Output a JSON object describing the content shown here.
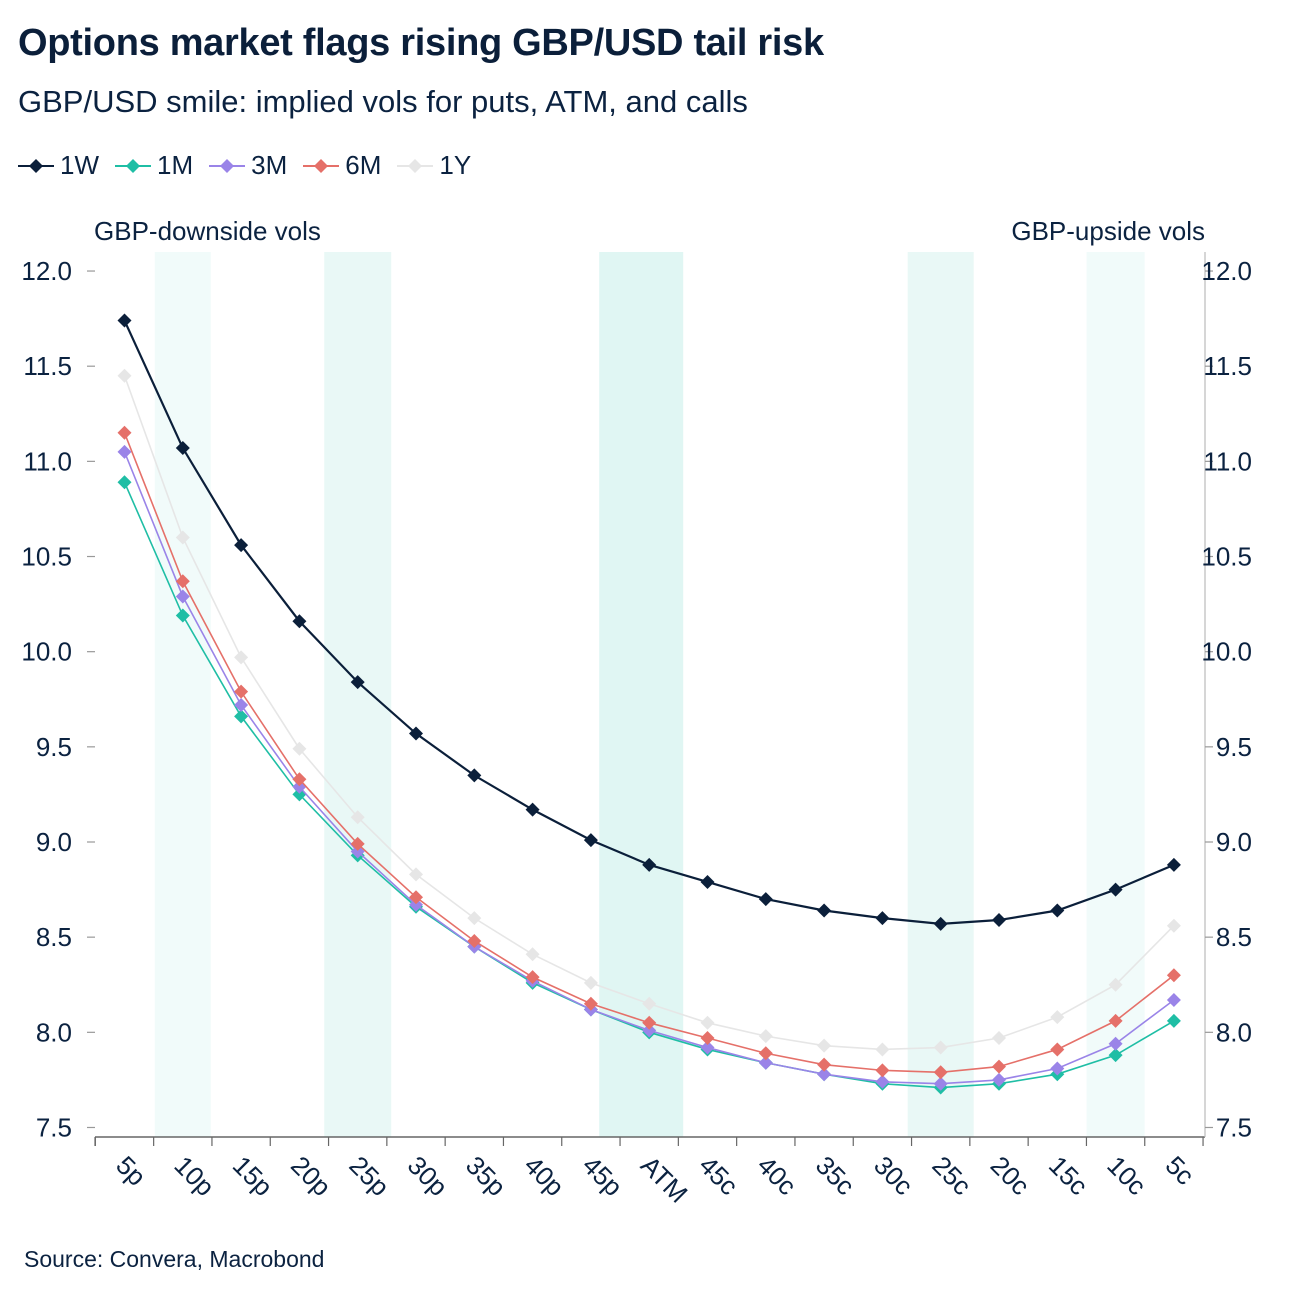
{
  "title": "Options market flags rising GBP/USD tail risk",
  "subtitle": "GBP/USD smile: implied vols for puts, ATM, and calls",
  "source": "Source: Convera, Macrobond",
  "annotations": {
    "left": "GBP-downside vols",
    "right": "GBP-upside vols"
  },
  "chart_data": {
    "type": "line",
    "categories": [
      "5p",
      "10p",
      "15p",
      "20p",
      "25p",
      "30p",
      "35p",
      "40p",
      "45p",
      "ATM",
      "45c",
      "40c",
      "35c",
      "30c",
      "25c",
      "20c",
      "15c",
      "10c",
      "5c"
    ],
    "ylim": [
      7.45,
      12.1
    ],
    "yticks": [
      "7.5",
      "8.0",
      "8.5",
      "9.0",
      "9.5",
      "10.0",
      "10.5",
      "11.0",
      "11.5",
      "12.0"
    ],
    "dual_y_axis": true,
    "marker": "diamond",
    "legend_position": "top-left",
    "shaded_bands": [
      {
        "from": "10p",
        "to": "10p",
        "color": "#f1fbfa"
      },
      {
        "from": "25p",
        "to": "25p",
        "color": "#e9f8f6"
      },
      {
        "from": "ATM",
        "to": "ATM",
        "color": "#e0f6f3"
      },
      {
        "from": "25c",
        "to": "25c",
        "color": "#e9f8f6"
      },
      {
        "from": "10c",
        "to": "10c",
        "color": "#f1fbfa"
      }
    ],
    "series": [
      {
        "name": "1Y",
        "color": "#e6e6e6",
        "values": [
          11.45,
          10.6,
          9.97,
          9.49,
          9.13,
          8.83,
          8.6,
          8.41,
          8.26,
          8.15,
          8.05,
          7.98,
          7.93,
          7.91,
          7.92,
          7.97,
          8.08,
          8.25,
          8.56
        ]
      },
      {
        "name": "1M",
        "color": "#1fbea5",
        "values": [
          10.89,
          10.19,
          9.66,
          9.25,
          8.93,
          8.66,
          8.45,
          8.26,
          8.12,
          8.0,
          7.91,
          7.84,
          7.78,
          7.73,
          7.71,
          7.73,
          7.78,
          7.88,
          8.06
        ]
      },
      {
        "name": "3M",
        "color": "#9a84e8",
        "values": [
          11.05,
          10.29,
          9.72,
          9.29,
          8.95,
          8.67,
          8.45,
          8.27,
          8.12,
          8.01,
          7.92,
          7.84,
          7.78,
          7.74,
          7.73,
          7.75,
          7.81,
          7.94,
          8.17
        ]
      },
      {
        "name": "6M",
        "color": "#e57069",
        "values": [
          11.15,
          10.37,
          9.79,
          9.33,
          8.99,
          8.71,
          8.48,
          8.29,
          8.15,
          8.05,
          7.97,
          7.89,
          7.83,
          7.8,
          7.79,
          7.82,
          7.91,
          8.06,
          8.3
        ]
      },
      {
        "name": "1W",
        "color": "#0b1f3a",
        "values": [
          11.74,
          11.07,
          10.56,
          10.16,
          9.84,
          9.57,
          9.35,
          9.17,
          9.01,
          8.88,
          8.79,
          8.7,
          8.64,
          8.6,
          8.57,
          8.59,
          8.64,
          8.75,
          8.88
        ]
      }
    ],
    "legend_order": [
      "1W",
      "1M",
      "3M",
      "6M",
      "1Y"
    ]
  }
}
